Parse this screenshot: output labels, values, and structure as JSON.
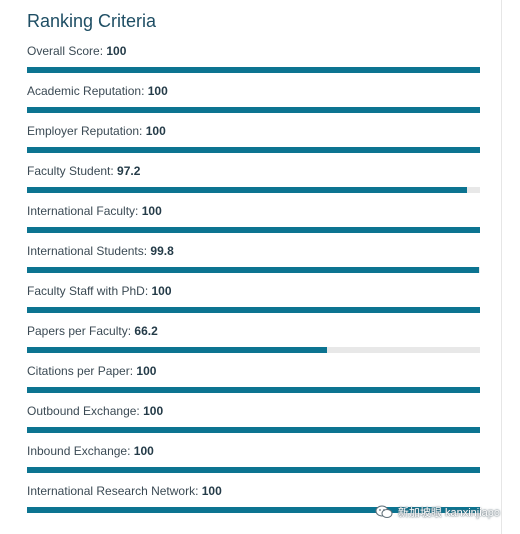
{
  "title": "Ranking Criteria",
  "criteria": [
    {
      "label": "Overall Score: ",
      "score": "100",
      "percent": 100
    },
    {
      "label": "Academic Reputation: ",
      "score": "100",
      "percent": 100
    },
    {
      "label": "Employer Reputation: ",
      "score": "100",
      "percent": 100
    },
    {
      "label": "Faculty Student: ",
      "score": "97.2",
      "percent": 97.2
    },
    {
      "label": "International Faculty: ",
      "score": "100",
      "percent": 100
    },
    {
      "label": "International Students: ",
      "score": "99.8",
      "percent": 99.8
    },
    {
      "label": "Faculty Staff with PhD: ",
      "score": "100",
      "percent": 100
    },
    {
      "label": "Papers per Faculty: ",
      "score": "66.2",
      "percent": 66.2
    },
    {
      "label": "Citations per Paper: ",
      "score": "100",
      "percent": 100
    },
    {
      "label": "Outbound Exchange: ",
      "score": "100",
      "percent": 100
    },
    {
      "label": "Inbound Exchange: ",
      "score": "100",
      "percent": 100
    },
    {
      "label": "International Research Network: ",
      "score": "100",
      "percent": 100
    }
  ],
  "watermark": {
    "icon": "wechat-icon",
    "text": "新加坡眼 kanxinjiapo"
  },
  "colors": {
    "bar_fill": "#0c7491",
    "bar_track": "#e8e8e8",
    "title": "#1e4e64"
  }
}
